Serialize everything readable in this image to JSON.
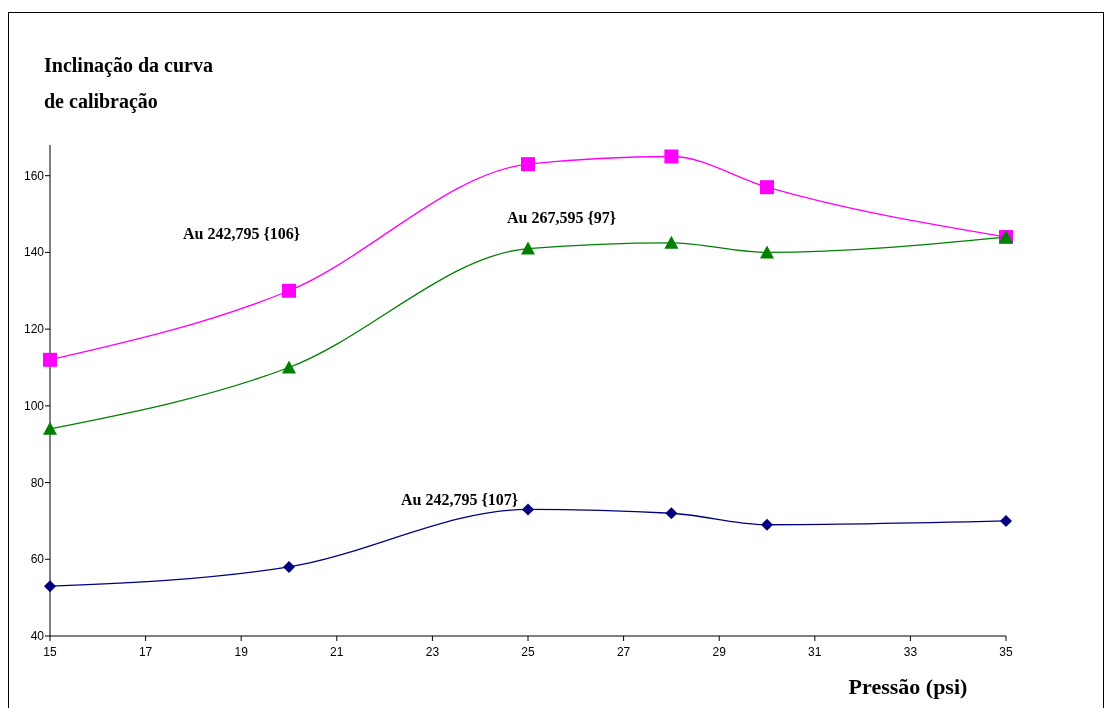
{
  "chart_data": {
    "type": "line",
    "title": "Inclinação da curva\nde calibração",
    "xlabel": "Pressão (psi)",
    "x": [
      15,
      20,
      25,
      28,
      30,
      35
    ],
    "xlim": [
      15,
      35
    ],
    "xticks": [
      15,
      17,
      19,
      21,
      23,
      25,
      27,
      29,
      31,
      33,
      35
    ],
    "ylim": [
      40,
      168
    ],
    "yticks": [
      40,
      60,
      80,
      100,
      120,
      140,
      160
    ],
    "grid": false,
    "legend": false,
    "line_style": "solid",
    "series": [
      {
        "name": "Au  242,795 {106}",
        "color": "#ff00ff",
        "marker": "square",
        "values": [
          112,
          130,
          163,
          165,
          157,
          144
        ]
      },
      {
        "name": "Au  267,595 {97}",
        "color": "#008000",
        "marker": "triangle",
        "values": [
          94,
          110,
          141,
          142.5,
          140,
          144
        ]
      },
      {
        "name": "Au  242,795 {107}",
        "color": "#000080",
        "marker": "diamond",
        "values": [
          53,
          58,
          73,
          72,
          69,
          70
        ]
      }
    ]
  }
}
